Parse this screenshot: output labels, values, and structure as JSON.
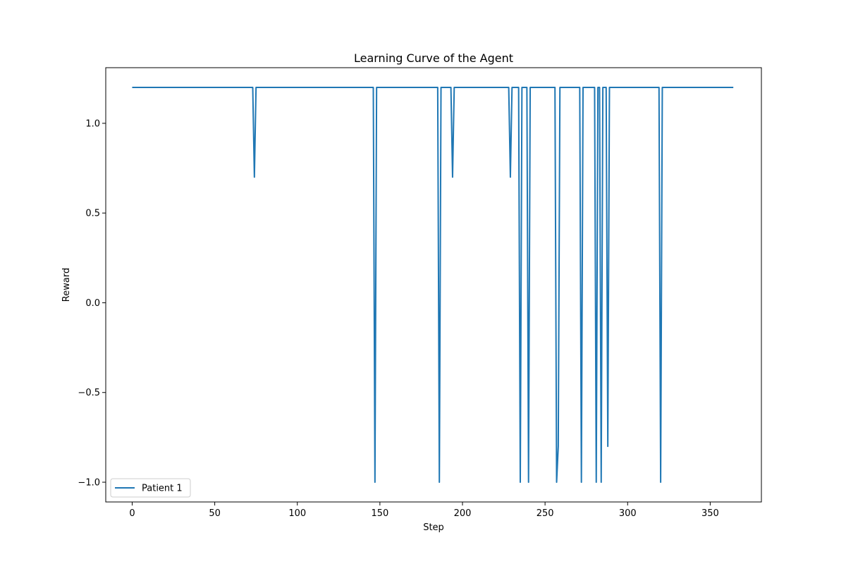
{
  "chart_data": {
    "type": "line",
    "title": "Learning Curve of the Agent",
    "xlabel": "Step",
    "ylabel": "Reward",
    "xlim": [
      -16,
      381
    ],
    "ylim": [
      -1.11,
      1.31
    ],
    "xticks": [
      0,
      50,
      100,
      150,
      200,
      250,
      300,
      350
    ],
    "yticks": [
      -1.0,
      -0.5,
      0.0,
      0.5,
      1.0
    ],
    "grid": false,
    "legend_position": "lower-left",
    "line_color": "#1f77b4",
    "series": [
      {
        "name": "Patient 1",
        "x": [
          0,
          73,
          74,
          75,
          146,
          147,
          148,
          185,
          186,
          187,
          193,
          194,
          195,
          228,
          229,
          230,
          234,
          235,
          236,
          239,
          240,
          241,
          256,
          257,
          258,
          259,
          271,
          272,
          273,
          280,
          281,
          282,
          283,
          284,
          285,
          287,
          288,
          289,
          319,
          320,
          321,
          364
        ],
        "y": [
          1.2,
          1.2,
          0.7,
          1.2,
          1.2,
          -1.0,
          1.2,
          1.2,
          -1.0,
          1.2,
          1.2,
          0.7,
          1.2,
          1.2,
          0.7,
          1.2,
          1.2,
          -1.0,
          1.2,
          1.2,
          -1.0,
          1.2,
          1.2,
          -1.0,
          -0.8,
          1.2,
          1.2,
          -1.0,
          1.2,
          1.2,
          -1.0,
          1.2,
          1.2,
          -1.0,
          1.2,
          1.2,
          -0.8,
          1.2,
          1.2,
          -1.0,
          1.2,
          1.2
        ]
      }
    ]
  }
}
